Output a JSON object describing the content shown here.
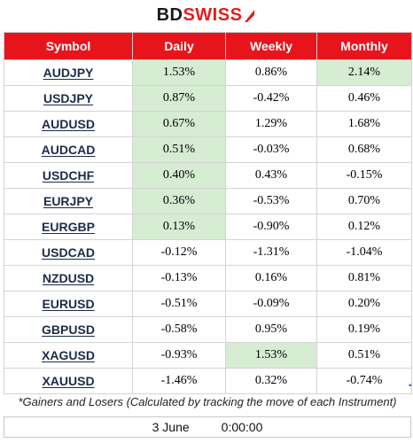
{
  "brand": {
    "part1": "BD",
    "part2": "SWISS",
    "accent": "#e21d1d"
  },
  "table": {
    "header_bg": "#e8141c",
    "highlight_color": "#d6ecd3",
    "headers": [
      "Symbol",
      "Daily",
      "Weekly",
      "Monthly"
    ],
    "rows": [
      {
        "symbol": "AUDJPY",
        "daily": "1.53%",
        "weekly": "0.86%",
        "monthly": "2.14%",
        "hl": [
          true,
          false,
          true
        ]
      },
      {
        "symbol": "USDJPY",
        "daily": "0.87%",
        "weekly": "-0.42%",
        "monthly": "0.46%",
        "hl": [
          true,
          false,
          false
        ]
      },
      {
        "symbol": "AUDUSD",
        "daily": "0.67%",
        "weekly": "1.29%",
        "monthly": "1.68%",
        "hl": [
          true,
          false,
          false
        ]
      },
      {
        "symbol": "AUDCAD",
        "daily": "0.51%",
        "weekly": "-0.03%",
        "monthly": "0.68%",
        "hl": [
          true,
          false,
          false
        ]
      },
      {
        "symbol": "USDCHF",
        "daily": "0.40%",
        "weekly": "0.43%",
        "monthly": "-0.15%",
        "hl": [
          true,
          false,
          false
        ]
      },
      {
        "symbol": "EURJPY",
        "daily": "0.36%",
        "weekly": "-0.53%",
        "monthly": "0.70%",
        "hl": [
          true,
          false,
          false
        ]
      },
      {
        "symbol": "EURGBP",
        "daily": "0.13%",
        "weekly": "-0.90%",
        "monthly": "0.12%",
        "hl": [
          true,
          false,
          false
        ]
      },
      {
        "symbol": "USDCAD",
        "daily": "-0.12%",
        "weekly": "-1.31%",
        "monthly": "-1.04%",
        "hl": [
          false,
          false,
          false
        ]
      },
      {
        "symbol": "NZDUSD",
        "daily": "-0.13%",
        "weekly": "0.16%",
        "monthly": "0.81%",
        "hl": [
          false,
          false,
          false
        ]
      },
      {
        "symbol": "EURUSD",
        "daily": "-0.51%",
        "weekly": "-0.09%",
        "monthly": "0.20%",
        "hl": [
          false,
          false,
          false
        ]
      },
      {
        "symbol": "GBPUSD",
        "daily": "-0.58%",
        "weekly": "0.95%",
        "monthly": "0.19%",
        "hl": [
          false,
          false,
          false
        ]
      },
      {
        "symbol": "XAGUSD",
        "daily": "-0.93%",
        "weekly": "1.53%",
        "monthly": "0.51%",
        "hl": [
          false,
          true,
          false
        ]
      },
      {
        "symbol": "XAUUSD",
        "daily": "-1.46%",
        "weekly": "0.32%",
        "monthly": "-0.74%",
        "hl": [
          false,
          false,
          false
        ]
      }
    ]
  },
  "footnote": "*Gainers and Losers (Calculated by tracking the move of each Instrument)",
  "date": {
    "day": "3 June",
    "time": "0:00:00"
  }
}
